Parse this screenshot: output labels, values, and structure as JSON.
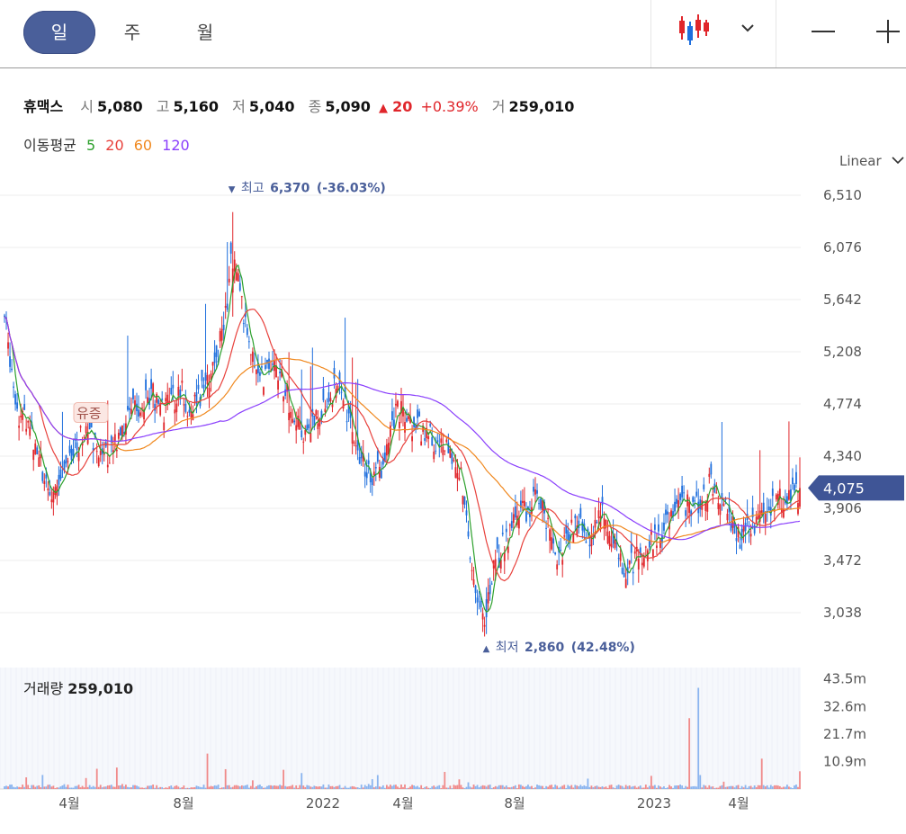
{
  "tabs": {
    "day": "일",
    "week": "주",
    "month": "월"
  },
  "chart_type_icon": "candlestick-icon",
  "header": {
    "name": "휴맥스",
    "open_label": "시",
    "open": "5,080",
    "high_label": "고",
    "high": "5,160",
    "low_label": "저",
    "low": "5,040",
    "close_label": "종",
    "close": "5,090",
    "change_arrow": "▲",
    "change": "20",
    "change_pct": "+0.39%",
    "volume_label": "거",
    "volume": "259,010"
  },
  "moving_avg": {
    "label": "이동평균",
    "p5": "5",
    "p20": "20",
    "p60": "60",
    "p120": "120"
  },
  "scale": {
    "label": "Linear"
  },
  "chart_data": {
    "type": "candlestick",
    "title": "휴맥스",
    "y_ticks": [
      "6,510",
      "6,076",
      "5,642",
      "5,208",
      "4,774",
      "4,340",
      "3,906",
      "3,472",
      "3,038"
    ],
    "y_tick_values": [
      6510,
      6076,
      5642,
      5208,
      4774,
      4340,
      3906,
      3472,
      3038
    ],
    "current_price_label": "4,075",
    "current_price": 4075,
    "high_marker": {
      "arrow": "▼",
      "label": "최고",
      "value": "6,370",
      "pct": "(-36.03%)",
      "value_num": 6370,
      "date": "2021-08"
    },
    "low_marker": {
      "arrow": "▲",
      "label": "최저",
      "value": "2,860",
      "pct": "(42.48%)",
      "value_num": 2860,
      "date": "2022-07"
    },
    "event_badge": "유증",
    "x_ticks": [
      "4월",
      "8월",
      "2022",
      "4월",
      "8월",
      "2023",
      "4월"
    ],
    "ylim": [
      2650,
      6650
    ],
    "series": [
      {
        "name": "MA5",
        "color": "#2ca02c"
      },
      {
        "name": "MA20",
        "color": "#e8413c"
      },
      {
        "name": "MA60",
        "color": "#f0881e"
      },
      {
        "name": "MA120",
        "color": "#8a3ffc"
      }
    ],
    "volume": {
      "title": "거래량",
      "value": "259,010",
      "y_ticks": [
        "43.5m",
        "32.6m",
        "21.7m",
        "10.9m"
      ],
      "y_tick_values": [
        43.5,
        32.6,
        21.7,
        10.9
      ]
    }
  },
  "colors": {
    "up": "#e0262b",
    "down": "#1f6fdd",
    "accent": "#4a5f9a"
  }
}
